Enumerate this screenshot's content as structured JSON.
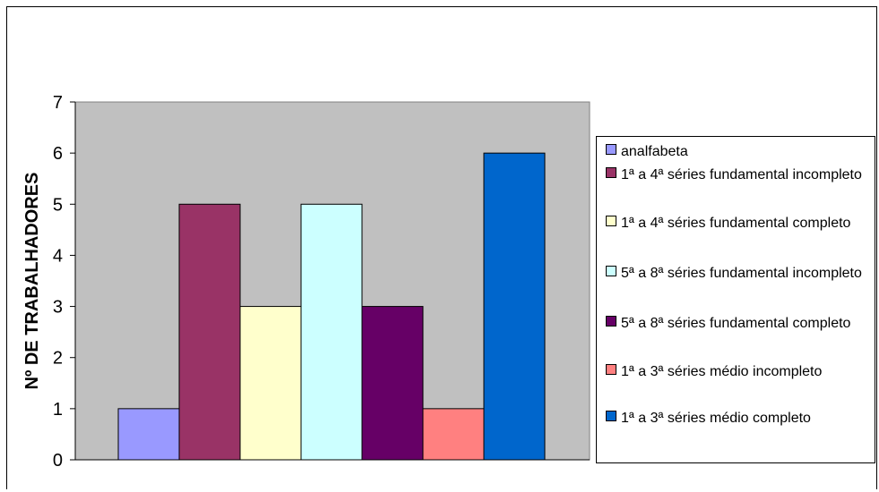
{
  "chart_data": {
    "type": "bar",
    "ylabel": "Nº DE TRABALHADORES",
    "xlabel": "",
    "ylim": [
      0,
      7
    ],
    "yticks": [
      "0",
      "1",
      "2",
      "3",
      "4",
      "5",
      "6",
      "7"
    ],
    "grid": false,
    "plot_background": "#C0C0C0",
    "legend_position": "right",
    "series": [
      {
        "name": "analfabeta",
        "value": 1,
        "color": "#9999FF"
      },
      {
        "name": "1ª a 4ª séries fundamental incompleto",
        "value": 5,
        "color": "#993366"
      },
      {
        "name": "1ª a 4ª séries fundamental completo",
        "value": 3,
        "color": "#FFFFCC"
      },
      {
        "name": "5ª a 8ª séries fundamental incompleto",
        "value": 5,
        "color": "#CCFFFF"
      },
      {
        "name": "5ª a 8ª séries fundamental completo",
        "value": 3,
        "color": "#660066"
      },
      {
        "name": "1ª a 3ª séries médio incompleto",
        "value": 1,
        "color": "#FF8080"
      },
      {
        "name": "1ª a 3ª séries médio completo",
        "value": 6,
        "color": "#0066CC"
      }
    ]
  }
}
